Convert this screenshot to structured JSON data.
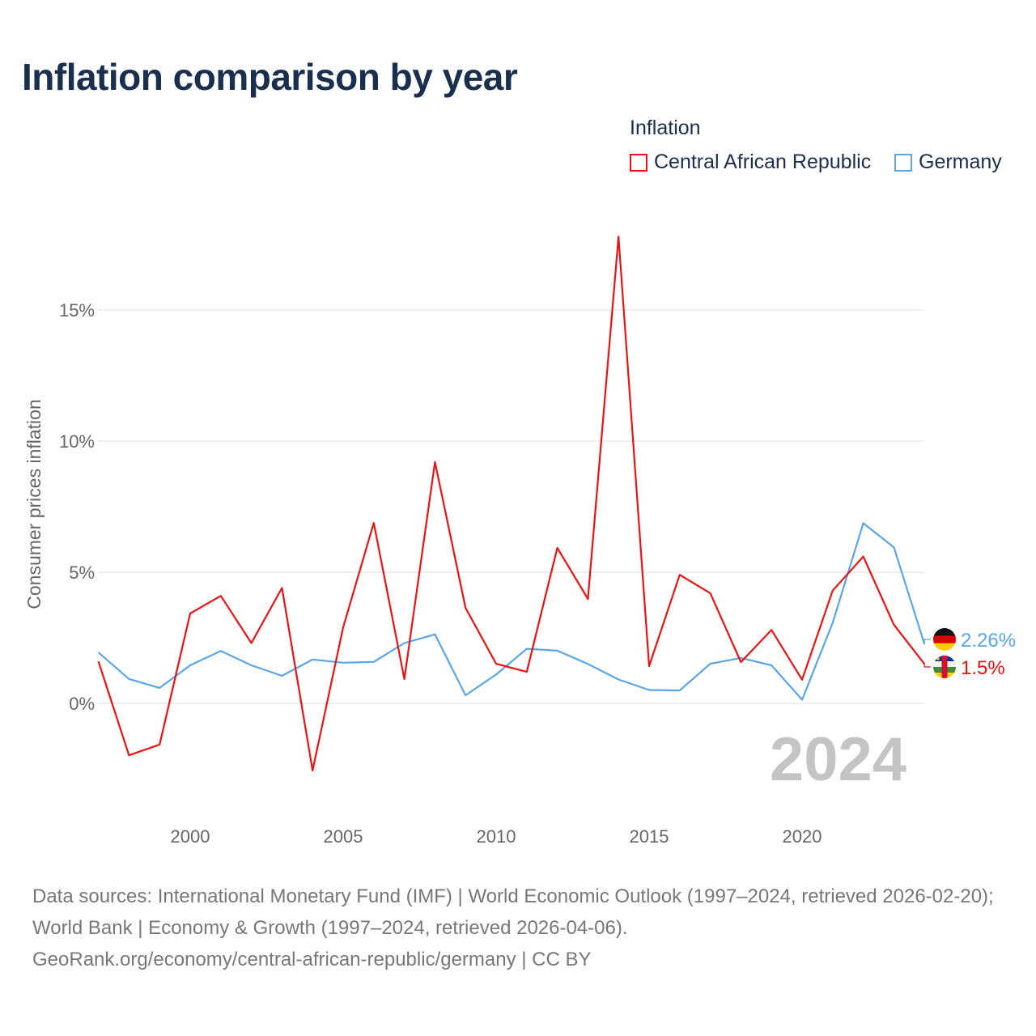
{
  "chart_data": {
    "type": "line",
    "title": "Inflation comparison by year",
    "legend_title": "Inflation",
    "legend_position": "top-right",
    "ylabel": "Consumer prices inflation",
    "xlabel": "",
    "ylim": [
      -4,
      19
    ],
    "yticks": [
      0,
      5,
      10,
      15
    ],
    "ytick_labels": [
      "0%",
      "5%",
      "10%",
      "15%"
    ],
    "xticks": [
      2000,
      2005,
      2010,
      2015,
      2020
    ],
    "xtick_labels": [
      "2000",
      "2005",
      "2010",
      "2015",
      "2020"
    ],
    "grid": true,
    "year_watermark": "2024",
    "x": [
      1997,
      1998,
      1999,
      2000,
      2001,
      2002,
      2003,
      2004,
      2005,
      2006,
      2007,
      2008,
      2009,
      2010,
      2011,
      2012,
      2013,
      2014,
      2015,
      2016,
      2017,
      2018,
      2019,
      2020,
      2021,
      2022,
      2023,
      2024
    ],
    "series": [
      {
        "name": "Central African Republic",
        "color": "#ee1111",
        "end_label": "1.5%",
        "flag": "central-african-republic",
        "values": [
          1.6,
          -1.98,
          -1.57,
          3.43,
          4.1,
          2.3,
          4.4,
          -2.56,
          2.9,
          6.88,
          0.93,
          9.2,
          3.64,
          1.51,
          1.2,
          5.93,
          3.98,
          17.8,
          1.42,
          4.9,
          4.2,
          1.57,
          2.8,
          0.9,
          4.3,
          5.6,
          3.0,
          1.5
        ]
      },
      {
        "name": "Germany",
        "color": "#5aa5e6",
        "end_label": "2.26%",
        "flag": "germany",
        "values": [
          1.94,
          0.93,
          0.59,
          1.45,
          2.0,
          1.45,
          1.05,
          1.67,
          1.55,
          1.58,
          2.3,
          2.63,
          0.31,
          1.1,
          2.08,
          2.01,
          1.5,
          0.91,
          0.51,
          0.49,
          1.51,
          1.73,
          1.45,
          0.14,
          3.07,
          6.87,
          5.95,
          2.26
        ]
      }
    ]
  },
  "footer": {
    "sources": "Data sources: International Monetary Fund (IMF) | World Economic Outlook (1997–2024, retrieved 2026-02-20); World Bank | Economy & Growth (1997–2024, retrieved 2026-04-06).",
    "credit": "GeoRank.org/economy/central-african-republic/germany | CC BY"
  }
}
